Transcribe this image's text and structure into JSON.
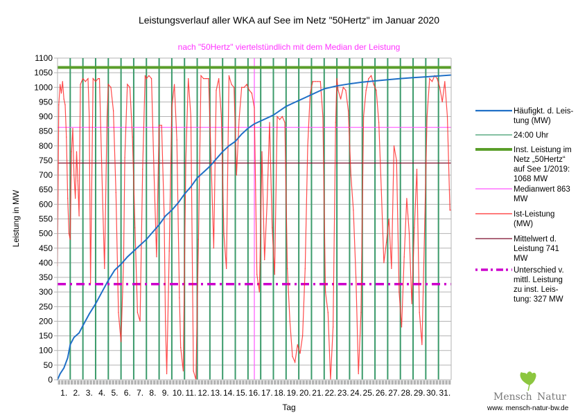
{
  "chart_data": {
    "type": "line",
    "title": "Leistungsverlauf aller WKA auf See im Netz \"50Hertz\" im Januar 2020",
    "subtitle": "nach \"50Hertz\" viertelstündlich mit dem Median der Leistung",
    "xlabel": "Tag",
    "ylabel": "Leistung in MW",
    "xlim": [
      0,
      31
    ],
    "ylim": [
      0,
      1100
    ],
    "y_ticks": [
      0,
      50,
      100,
      150,
      200,
      250,
      300,
      350,
      400,
      450,
      500,
      550,
      600,
      650,
      700,
      750,
      800,
      850,
      900,
      950,
      1000,
      1050,
      1100
    ],
    "x_tick_labels": [
      "1.",
      "2.",
      "3.",
      "4.",
      "5.",
      "6.",
      "7.",
      "8.",
      "9.",
      "10.",
      "11.",
      "12.",
      "13.",
      "14.",
      "15.",
      "16.",
      "17.",
      "18.",
      "19.",
      "20.",
      "21.",
      "22.",
      "23.",
      "24.",
      "25.",
      "26.",
      "27.",
      "28.",
      "29.",
      "30.",
      "31."
    ],
    "grid": true,
    "legend_position": "right",
    "series": [
      {
        "name": "Häufigkt. d. Leistung (MW)",
        "legend_lines": [
          "Häufigkt. d. Leis-",
          "tung (MW)"
        ],
        "color": "#1f6fc6",
        "x": [
          0,
          0.2,
          0.5,
          0.8,
          1.0,
          1.3,
          1.7,
          2.0,
          2.5,
          3.0,
          3.5,
          4.0,
          4.5,
          5.0,
          5.5,
          6.0,
          6.5,
          7.0,
          7.5,
          8.0,
          8.5,
          9.0,
          9.5,
          10.0,
          10.5,
          11.0,
          11.5,
          12.0,
          12.5,
          13.0,
          13.5,
          14.0,
          14.5,
          15.0,
          15.5,
          16.0,
          16.5,
          17.0,
          17.5,
          18.0,
          18.5,
          19.0,
          19.5,
          20.0,
          20.5,
          21.0,
          22.0,
          23.0,
          24.0,
          25.0,
          26.0,
          27.0,
          28.0,
          29.0,
          30.0,
          31.0
        ],
        "y": [
          0,
          20,
          40,
          75,
          120,
          145,
          160,
          185,
          225,
          260,
          300,
          340,
          375,
          395,
          420,
          440,
          460,
          480,
          505,
          530,
          560,
          580,
          605,
          635,
          660,
          690,
          710,
          730,
          755,
          780,
          800,
          815,
          840,
          860,
          875,
          885,
          895,
          905,
          920,
          935,
          945,
          955,
          965,
          975,
          985,
          995,
          1005,
          1012,
          1018,
          1022,
          1026,
          1030,
          1033,
          1036,
          1039,
          1042
        ]
      },
      {
        "name": "24:00 Uhr",
        "color": "#3a9a6a",
        "x": [
          1,
          2,
          3,
          4,
          5,
          6,
          7,
          8,
          9,
          10,
          11,
          12,
          13,
          14,
          15,
          16,
          17,
          18,
          19,
          20,
          21,
          22,
          23,
          24,
          25,
          26,
          27,
          28,
          29,
          30
        ]
      },
      {
        "name": "Inst. Leistung im Netz „50Hertz“ auf See 1/2019: 1068 MW",
        "legend_lines": [
          "Inst. Leistung im",
          "Netz „50Hertz“",
          "auf See 1/2019:",
          "1068 MW"
        ],
        "color": "#5a9e2a",
        "value": 1068
      },
      {
        "name": "Medianwert 863 MW",
        "legend_lines": [
          "Medianwert 863",
          "MW"
        ],
        "color": "#ff55ff",
        "value": 863,
        "x_marker": 15.5
      },
      {
        "name": "Ist-Leistung (MW)",
        "legend_lines": [
          "Ist-Leistung",
          "(MW)"
        ],
        "color": "#ff2a2a",
        "x": [
          0,
          0.1,
          0.2,
          0.3,
          0.4,
          0.5,
          0.6,
          0.7,
          0.8,
          0.9,
          1.0,
          1.1,
          1.2,
          1.3,
          1.4,
          1.5,
          1.6,
          1.7,
          1.8,
          1.9,
          2.0,
          2.2,
          2.4,
          2.5,
          2.6,
          2.8,
          3.0,
          3.2,
          3.3,
          3.5,
          3.7,
          3.9,
          4.0,
          4.2,
          4.4,
          4.6,
          4.8,
          5.0,
          5.2,
          5.3,
          5.5,
          5.7,
          5.9,
          6.1,
          6.3,
          6.5,
          6.7,
          6.9,
          7.0,
          7.2,
          7.4,
          7.6,
          7.8,
          8.0,
          8.2,
          8.4,
          8.5,
          8.6,
          8.8,
          9.0,
          9.2,
          9.4,
          9.6,
          9.7,
          9.9,
          10.1,
          10.3,
          10.5,
          10.7,
          10.9,
          11.1,
          11.3,
          11.5,
          11.7,
          11.9,
          12.1,
          12.3,
          12.5,
          12.7,
          12.9,
          13.1,
          13.3,
          13.5,
          13.7,
          13.9,
          14.1,
          14.3,
          14.5,
          14.7,
          14.9,
          15.1,
          15.3,
          15.5,
          15.7,
          15.9,
          16.1,
          16.3,
          16.5,
          16.7,
          16.9,
          17.1,
          17.3,
          17.5,
          17.7,
          17.9,
          18.1,
          18.3,
          18.5,
          18.7,
          18.9,
          19.1,
          19.3,
          19.5,
          19.7,
          19.9,
          20.1,
          20.3,
          20.5,
          20.7,
          20.9,
          21.1,
          21.3,
          21.5,
          21.7,
          21.9,
          22.0,
          22.1,
          22.3,
          22.5,
          22.7,
          22.9,
          23.1,
          23.3,
          23.5,
          23.7,
          23.9,
          24.1,
          24.3,
          24.5,
          24.7,
          24.9,
          25.1,
          25.3,
          25.5,
          25.7,
          25.9,
          26.1,
          26.3,
          26.5,
          26.7,
          26.9,
          27.1,
          27.3,
          27.5,
          27.7,
          27.9,
          28.1,
          28.3,
          28.5,
          28.7,
          28.9,
          29.1,
          29.3,
          29.5,
          29.7,
          29.9,
          30.1,
          30.3,
          30.5,
          30.7,
          30.9,
          31.0
        ],
        "y": [
          390,
          940,
          1010,
          980,
          1020,
          960,
          940,
          830,
          620,
          500,
          480,
          780,
          860,
          700,
          620,
          780,
          680,
          560,
          1010,
          1020,
          1030,
          1020,
          1030,
          900,
          330,
          1030,
          1020,
          1030,
          1030,
          700,
          380,
          900,
          1010,
          1000,
          920,
          640,
          230,
          130,
          400,
          760,
          1010,
          1000,
          830,
          520,
          230,
          200,
          720,
          1040,
          1030,
          1040,
          1030,
          700,
          420,
          870,
          870,
          560,
          200,
          20,
          440,
          930,
          1010,
          820,
          280,
          110,
          30,
          750,
          1030,
          900,
          30,
          0,
          480,
          1040,
          1030,
          1030,
          1030,
          740,
          450,
          990,
          1030,
          900,
          500,
          380,
          1040,
          1010,
          1000,
          700,
          890,
          1000,
          1000,
          1010,
          990,
          980,
          930,
          360,
          300,
          780,
          410,
          600,
          880,
          520,
          360,
          900,
          890,
          900,
          880,
          380,
          200,
          80,
          60,
          120,
          90,
          150,
          380,
          800,
          980,
          1020,
          1020,
          1020,
          1020,
          900,
          300,
          230,
          0,
          180,
          880,
          1030,
          990,
          960,
          1000,
          990,
          920,
          700,
          580,
          350,
          20,
          230,
          900,
          990,
          1030,
          1040,
          1010,
          990,
          880,
          650,
          400,
          470,
          550,
          380,
          800,
          750,
          300,
          180,
          420,
          620,
          500,
          260,
          520,
          720,
          230,
          120,
          500,
          900,
          1030,
          1020,
          1040,
          1030,
          1000,
          950,
          1020,
          900,
          580,
          580
        ]
      },
      {
        "name": "Mittelwert d. Leistung 741 MW",
        "legend_lines": [
          "Mittelwert d.",
          "Leistung 741",
          "MW"
        ],
        "color": "#7a0b2a",
        "value": 741
      },
      {
        "name": "Unterschied v. mittl. Leistung zu inst. Leistung: 327 MW",
        "legend_lines": [
          "Unterschied v.",
          "mittl. Leistung",
          "zu inst. Leis-",
          "tung: 327 MW"
        ],
        "color": "#cc00cc",
        "value": 327
      }
    ]
  },
  "logo": {
    "text_left": "Mensch",
    "text_right": "Natur",
    "url": "www. mensch-natur-bw.de"
  }
}
